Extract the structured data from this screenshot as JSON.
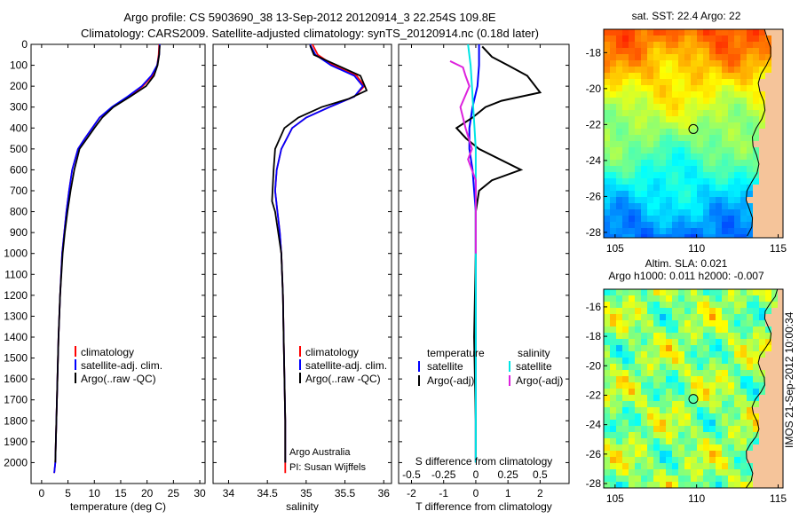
{
  "title_lines": [
    "Argo profile: CS 5903690_38 13-Sep-2012 20120914_3 22.254S 109.8E",
    "Climatology: CARS2009. Satellite-adjusted climatology: synTS_20120914.nc (0.18d later)"
  ],
  "colors": {
    "climatology": "#ff0000",
    "satellite": "#0000ff",
    "argo": "#000000",
    "salinity_sat": "#00e5e5",
    "salinity_argo": "#dd22dd"
  },
  "depth_axis": {
    "ylim": [
      2100,
      0
    ],
    "ticks": [
      0,
      100,
      200,
      300,
      400,
      500,
      600,
      700,
      800,
      900,
      1000,
      1100,
      1200,
      1300,
      1400,
      1500,
      1600,
      1700,
      1800,
      1900,
      2000
    ]
  },
  "chart_data": [
    {
      "type": "line",
      "xlabel": "temperature (deg C)",
      "xlim": [
        -2,
        31
      ],
      "xticks": [
        0,
        5,
        10,
        15,
        20,
        25,
        30
      ],
      "legend": [
        "climatology",
        "satellite-adj. clim.",
        "Argo(..raw -QC)"
      ],
      "series": [
        {
          "name": "climatology",
          "x": [
            22.3,
            22.2,
            21.9,
            21.0,
            19.2,
            16.5,
            13.4,
            11.0,
            9.6,
            8.2,
            6.9,
            5.8,
            5.2,
            4.7,
            4.3,
            3.9,
            3.5,
            3.2,
            3.0,
            2.8,
            2.6,
            2.4
          ],
          "depth": [
            0,
            50,
            100,
            150,
            200,
            250,
            300,
            350,
            400,
            450,
            500,
            600,
            700,
            800,
            900,
            1000,
            1200,
            1400,
            1600,
            1800,
            2000,
            2050
          ]
        },
        {
          "name": "satellite-adj. clim.",
          "x": [
            22.4,
            22.3,
            21.9,
            20.8,
            19.0,
            16.3,
            13.3,
            11.0,
            9.6,
            8.2,
            6.9,
            5.8,
            5.2,
            4.7,
            4.3,
            3.9,
            3.5,
            3.2,
            3.0,
            2.8,
            2.6,
            2.4
          ],
          "depth": [
            0,
            50,
            100,
            150,
            200,
            250,
            300,
            350,
            400,
            450,
            500,
            600,
            700,
            800,
            900,
            1000,
            1200,
            1400,
            1600,
            1800,
            2000,
            2050
          ]
        },
        {
          "name": "Argo(..raw -QC)",
          "x": [
            22.4,
            22.3,
            22.0,
            21.3,
            19.8,
            16.8,
            13.6,
            11.5,
            10.0,
            8.6,
            7.2,
            6.2,
            5.5,
            4.9,
            4.4,
            4.0,
            3.5,
            3.2,
            3.0,
            2.8,
            2.6
          ],
          "depth": [
            5,
            50,
            100,
            150,
            200,
            250,
            300,
            350,
            400,
            450,
            500,
            600,
            700,
            800,
            900,
            1000,
            1200,
            1400,
            1600,
            1800,
            2000
          ]
        }
      ]
    },
    {
      "type": "line",
      "xlabel": "salinity",
      "xlim": [
        33.8,
        36.1
      ],
      "xticks": [
        34,
        34.5,
        35,
        35.5,
        36
      ],
      "legend": [
        "climatology",
        "satellite-adj. clim.",
        "Argo(..raw -QC)"
      ],
      "annotation": [
        "Argo Australia",
        "PI: Susan Wijffels"
      ],
      "series": [
        {
          "name": "climatology",
          "x": [
            35.08,
            35.15,
            35.35,
            35.65,
            35.75,
            35.62,
            35.3,
            35.0,
            34.82,
            34.68,
            34.62,
            34.6,
            34.63,
            34.66,
            34.68,
            34.7,
            34.71,
            34.72,
            34.73,
            34.73
          ],
          "depth": [
            0,
            50,
            100,
            150,
            200,
            250,
            300,
            350,
            400,
            500,
            600,
            700,
            800,
            900,
            1000,
            1200,
            1400,
            1600,
            1800,
            2050
          ]
        },
        {
          "name": "satellite-adj. clim.",
          "x": [
            35.05,
            35.12,
            35.32,
            35.62,
            35.73,
            35.62,
            35.3,
            35.0,
            34.82,
            34.68,
            34.62,
            34.6,
            34.63,
            34.66,
            34.68,
            34.7,
            34.71,
            34.72,
            34.73,
            34.73
          ],
          "depth": [
            0,
            50,
            100,
            150,
            200,
            250,
            300,
            350,
            400,
            500,
            600,
            700,
            800,
            900,
            1000,
            1200,
            1400,
            1600,
            1800,
            2000
          ]
        },
        {
          "name": "Argo(..raw -QC)",
          "x": [
            35.05,
            35.1,
            35.4,
            35.7,
            35.78,
            35.55,
            35.2,
            34.9,
            34.72,
            34.6,
            34.58,
            34.56,
            34.6,
            34.64,
            34.68,
            34.7,
            34.71,
            34.72,
            34.73,
            34.73
          ],
          "depth": [
            5,
            50,
            100,
            150,
            220,
            260,
            300,
            350,
            400,
            500,
            600,
            750,
            800,
            900,
            1000,
            1200,
            1400,
            1600,
            1800,
            2000
          ]
        }
      ]
    },
    {
      "type": "line",
      "xlabel": "T difference from climatology",
      "xlim": [
        -2.4,
        2.9
      ],
      "xticks": [
        -2,
        -1,
        0,
        1,
        2
      ],
      "s_label": "S difference from climatology",
      "s_ticks": [
        "-0.5",
        "-0.25",
        "0",
        "0.25",
        "0.5"
      ],
      "s_scale": 4,
      "legend": {
        "temperature": [
          "satellite",
          "Argo(-adj)"
        ],
        "salinity": [
          "satellite",
          "Argo(-adj)"
        ],
        "headers": [
          "temperature",
          "salinity"
        ]
      },
      "series": [
        {
          "name": "satellite",
          "kind": "T",
          "x": [
            0.1,
            0.1,
            0.05,
            -0.1,
            -0.2,
            -0.2,
            -0.1,
            0,
            0,
            0
          ],
          "depth": [
            0,
            100,
            200,
            300,
            400,
            500,
            600,
            800,
            1000,
            2000
          ]
        },
        {
          "name": "Argo(-adj)",
          "kind": "T",
          "x": [
            0.2,
            0.5,
            1.0,
            1.6,
            2.0,
            0.8,
            0.3,
            -0.1,
            -0.6,
            -0.3,
            0.1,
            1.4,
            0.5,
            0.1,
            0,
            0,
            -0.05,
            0,
            0
          ],
          "depth": [
            10,
            60,
            100,
            150,
            230,
            270,
            300,
            350,
            400,
            450,
            500,
            600,
            650,
            700,
            800,
            1000,
            1400,
            1800,
            2000
          ]
        },
        {
          "name": "satellite",
          "kind": "S",
          "x": [
            -0.06,
            -0.04,
            -0.03,
            -0.02,
            -0.01,
            0,
            0,
            0,
            0,
            0,
            0
          ],
          "depth": [
            0,
            100,
            200,
            300,
            400,
            500,
            600,
            800,
            1000,
            1500,
            2000
          ]
        },
        {
          "name": "Argo(-adj)",
          "kind": "S",
          "x": [
            -0.2,
            -0.1,
            -0.08,
            -0.05,
            -0.12,
            -0.08,
            -0.03,
            -0.06,
            0,
            0,
            0
          ],
          "depth": [
            80,
            110,
            150,
            200,
            300,
            400,
            500,
            550,
            650,
            800,
            1000
          ]
        }
      ]
    },
    {
      "type": "heatmap",
      "title": "sat. SST: 22.4  Argo: 22",
      "xlim": [
        104.3,
        115.3
      ],
      "ylim": [
        -28.3,
        -16.7
      ],
      "xticks": [
        "105",
        "110",
        "115"
      ],
      "yticks": [
        "-18",
        "-20",
        "-22",
        "-24",
        "-26",
        "-28"
      ],
      "marker": [
        109.8,
        -22.25
      ]
    },
    {
      "type": "heatmap",
      "title": [
        "Altim. SLA: 0.021",
        "Argo h1000: 0.011 h2000: -0.007"
      ],
      "xlim": [
        104.3,
        115.3
      ],
      "ylim": [
        -28.3,
        -14.8
      ],
      "xticks": [
        "105",
        "110",
        "115"
      ],
      "yticks": [
        "-16",
        "-18",
        "-20",
        "-22",
        "-24",
        "-26",
        "-28"
      ],
      "marker": [
        109.8,
        -22.25
      ]
    }
  ],
  "side_text": "IMOS 21-Sep-2012 10:00:34"
}
